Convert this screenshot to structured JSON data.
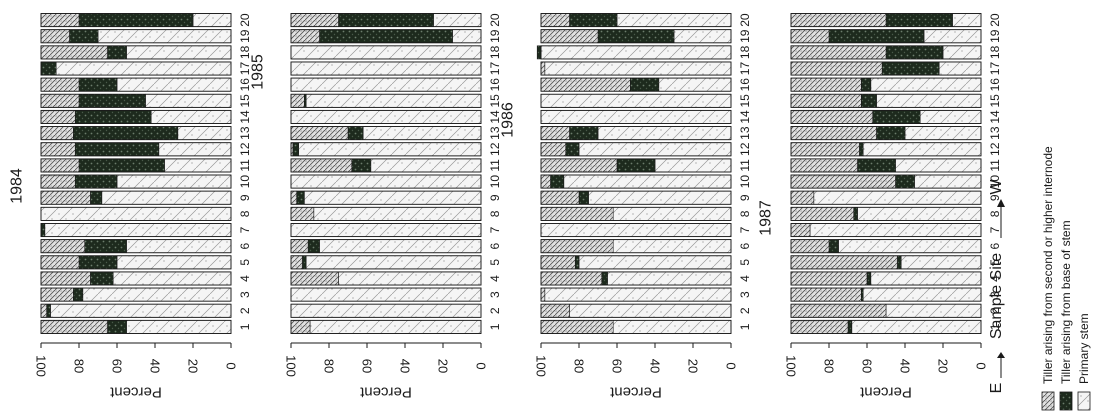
{
  "colors": {
    "primary_stem": "#f3f3f3",
    "tiller_base": "#1d2a1d",
    "tiller_higher": "#d4d4d4",
    "axis": "#1a1a1a"
  },
  "page": {
    "sample_site_label": "Sample Site",
    "direction_left": "E",
    "direction_right": "W"
  },
  "legend": [
    {
      "key": "tiller_higher",
      "label": "Tiller arising from second or higher internode"
    },
    {
      "key": "tiller_base",
      "label": "Tiller arising from base of stem"
    },
    {
      "key": "primary_stem",
      "label": "Primary stem"
    }
  ],
  "chart_data": [
    {
      "type": "bar",
      "stacked": true,
      "orientation": "horizontal-rotated",
      "title": "1984",
      "ylabel": "Percent",
      "xlabel": "",
      "ylim": [
        0,
        100
      ],
      "yticks": [
        0,
        20,
        40,
        60,
        80,
        100
      ],
      "categories": [
        "1",
        "2",
        "3",
        "4",
        "5",
        "6",
        "7",
        "8",
        "9",
        "10",
        "11",
        "12",
        "13",
        "14",
        "15",
        "16",
        "17",
        "18",
        "19",
        "20"
      ],
      "series": [
        {
          "name": "Primary stem",
          "values": [
            55,
            95,
            78,
            62,
            60,
            55,
            98,
            100,
            68,
            60,
            35,
            38,
            28,
            42,
            45,
            60,
            92,
            55,
            70,
            20
          ]
        },
        {
          "name": "Tiller arising from base of stem",
          "values": [
            10,
            2,
            5,
            12,
            20,
            22,
            2,
            0,
            6,
            22,
            45,
            44,
            55,
            40,
            35,
            20,
            8,
            10,
            15,
            60
          ]
        },
        {
          "name": "Tiller arising from second or higher internode",
          "values": [
            35,
            3,
            17,
            26,
            20,
            23,
            0,
            0,
            26,
            18,
            20,
            18,
            17,
            18,
            20,
            20,
            0,
            35,
            15,
            20
          ]
        }
      ]
    },
    {
      "type": "bar",
      "stacked": true,
      "orientation": "horizontal-rotated",
      "title": "1985",
      "ylabel": "Percent",
      "xlabel": "",
      "ylim": [
        0,
        100
      ],
      "yticks": [
        0,
        20,
        40,
        60,
        80,
        100
      ],
      "categories": [
        "1",
        "2",
        "3",
        "4",
        "5",
        "6",
        "7",
        "8",
        "9",
        "10",
        "11",
        "12",
        "13",
        "14",
        "15",
        "16",
        "17",
        "18",
        "19",
        "20"
      ],
      "series": [
        {
          "name": "Primary stem",
          "values": [
            90,
            100,
            100,
            75,
            92,
            85,
            100,
            88,
            93,
            100,
            58,
            96,
            62,
            100,
            92,
            100,
            100,
            100,
            15,
            25
          ]
        },
        {
          "name": "Tiller arising from base of stem",
          "values": [
            0,
            0,
            0,
            0,
            2,
            6,
            0,
            0,
            4,
            0,
            10,
            3,
            8,
            0,
            1,
            0,
            0,
            0,
            70,
            50
          ]
        },
        {
          "name": "Tiller arising from second or higher internode",
          "values": [
            10,
            0,
            0,
            25,
            6,
            9,
            0,
            12,
            3,
            0,
            32,
            1,
            30,
            0,
            7,
            0,
            0,
            0,
            15,
            25
          ]
        }
      ]
    },
    {
      "type": "bar",
      "stacked": true,
      "orientation": "horizontal-rotated",
      "title": "1986",
      "ylabel": "Percent",
      "xlabel": "",
      "ylim": [
        0,
        100
      ],
      "yticks": [
        0,
        20,
        40,
        60,
        80,
        100
      ],
      "categories": [
        "1",
        "2",
        "3",
        "4",
        "5",
        "6",
        "7",
        "8",
        "9",
        "10",
        "11",
        "12",
        "13",
        "14",
        "15",
        "16",
        "17",
        "18",
        "19",
        "20"
      ],
      "series": [
        {
          "name": "Primary stem",
          "values": [
            62,
            85,
            98,
            65,
            80,
            62,
            100,
            62,
            75,
            88,
            40,
            80,
            70,
            100,
            100,
            38,
            98,
            100,
            30,
            60
          ]
        },
        {
          "name": "Tiller arising from base of stem",
          "values": [
            0,
            0,
            0,
            3,
            2,
            0,
            0,
            0,
            5,
            7,
            20,
            7,
            15,
            0,
            0,
            15,
            0,
            2,
            40,
            25
          ]
        },
        {
          "name": "Tiller arising from second or higher internode",
          "values": [
            38,
            15,
            2,
            32,
            18,
            38,
            0,
            38,
            20,
            5,
            40,
            13,
            15,
            0,
            0,
            47,
            2,
            0,
            30,
            15
          ]
        }
      ]
    },
    {
      "type": "bar",
      "stacked": true,
      "orientation": "horizontal-rotated",
      "title": "1987",
      "ylabel": "Percent",
      "xlabel": "",
      "ylim": [
        0,
        100
      ],
      "yticks": [
        0,
        20,
        40,
        60,
        80,
        100
      ],
      "categories": [
        "1",
        "2",
        "3",
        "4",
        "5",
        "6",
        "7",
        "8",
        "9",
        "10",
        "11",
        "12",
        "13",
        "14",
        "15",
        "16",
        "17",
        "18",
        "19",
        "20"
      ],
      "series": [
        {
          "name": "Primary stem",
          "values": [
            68,
            50,
            62,
            58,
            42,
            75,
            90,
            65,
            88,
            35,
            45,
            62,
            40,
            32,
            55,
            58,
            22,
            20,
            30,
            15
          ]
        },
        {
          "name": "Tiller arising from base of stem",
          "values": [
            2,
            0,
            1,
            2,
            2,
            5,
            0,
            2,
            0,
            10,
            20,
            2,
            15,
            25,
            8,
            5,
            30,
            30,
            50,
            35
          ]
        },
        {
          "name": "Tiller arising from second or higher internode",
          "values": [
            30,
            50,
            37,
            40,
            56,
            20,
            10,
            33,
            12,
            55,
            35,
            36,
            45,
            43,
            37,
            37,
            48,
            50,
            20,
            50
          ]
        }
      ]
    }
  ]
}
